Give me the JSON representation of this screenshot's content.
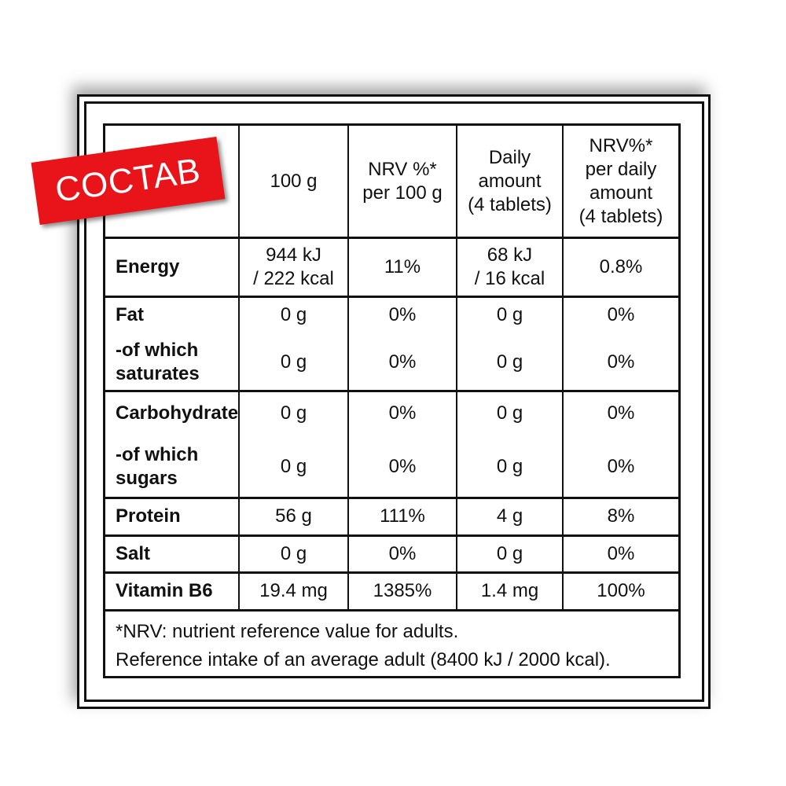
{
  "badge": "COCTAB",
  "table": {
    "header": [
      "100 g",
      "NRV %*\nper 100 g",
      "Daily\namount\n(4 tablets)",
      "NRV%*\nper daily\namount\n(4 tablets)"
    ],
    "rows": [
      [
        "Energy",
        "944 kJ\n/ 222 kcal",
        "11%",
        "68 kJ\n/ 16 kcal",
        "0.8%"
      ],
      [
        "Fat",
        "0 g",
        "0%",
        "0 g",
        "0%"
      ],
      [
        "-of which\nsaturates",
        "0 g",
        "0%",
        "0 g",
        "0%"
      ],
      [
        "Carbohydrate",
        "0 g",
        "0%",
        "0 g",
        "0%"
      ],
      [
        "-of which\nsugars",
        "0 g",
        "0%",
        "0 g",
        "0%"
      ],
      [
        "Protein",
        "56 g",
        "111%",
        "4 g",
        "8%"
      ],
      [
        "Salt",
        "0 g",
        "0%",
        "0 g",
        "0%"
      ],
      [
        "Vitamin B6",
        "19.4 mg",
        "1385%",
        "1.4 mg",
        "100%"
      ]
    ],
    "footnote": [
      "*NRV: nutrient reference value for adults.",
      "Reference intake of an average adult (8400 kJ / 2000 kcal)."
    ]
  }
}
